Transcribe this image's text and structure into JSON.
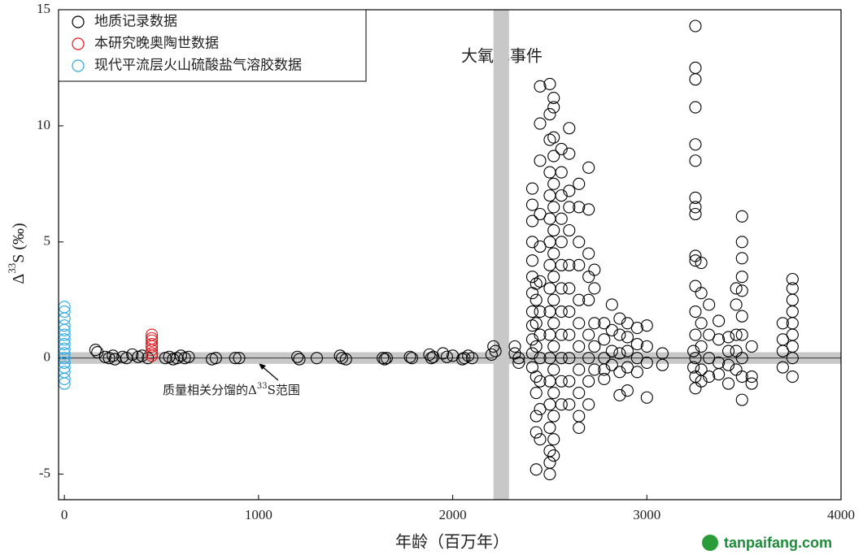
{
  "chart_data": {
    "type": "scatter",
    "xlabel": "年龄（百万年）",
    "ylabel": {
      "prefix": "Δ",
      "sup": "33",
      "suffix": "S (‰)"
    },
    "xlim": [
      -30,
      4000
    ],
    "xticks": [
      0,
      1000,
      2000,
      3000,
      4000
    ],
    "ylim": [
      -6.1,
      15
    ],
    "yticks": [
      -5,
      0,
      5,
      10,
      15
    ],
    "legend": "top-left",
    "grid": false,
    "mdf_band": [
      -0.25,
      0.25
    ],
    "reference_y": 0,
    "goe_band": [
      2210,
      2290
    ],
    "annotations": [
      {
        "text": "大氧化事件"
      },
      {
        "prefix": "质量相关分馏的Δ",
        "sup": "33",
        "suffix": "S范围"
      }
    ],
    "watermark": "tanpaifang.com",
    "series": [
      {
        "name": "地质记录数据",
        "color": "#000000",
        "x": [
          160,
          170,
          210,
          230,
          250,
          260,
          300,
          320,
          350,
          380,
          400,
          430,
          520,
          540,
          560,
          580,
          600,
          620,
          640,
          760,
          780,
          880,
          900,
          1200,
          1210,
          1300,
          1420,
          1430,
          1450,
          1640,
          1650,
          1660,
          1780,
          1790,
          1880,
          1890,
          1900,
          1950,
          1970,
          2000,
          2050,
          2060,
          2080,
          2100,
          2200,
          2210,
          2220,
          2320,
          2320,
          2340,
          2340,
          2410,
          2410,
          2410,
          2410,
          2410,
          2410,
          2410,
          2410,
          2410,
          2410,
          2410,
          2410,
          2430,
          2430,
          2430,
          2430,
          2430,
          2430,
          2430,
          2430,
          2430,
          2450,
          2450,
          2450,
          2450,
          2450,
          2450,
          2450,
          2450,
          2450,
          2450,
          2450,
          2450,
          2500,
          2500,
          2500,
          2500,
          2500,
          2500,
          2500,
          2500,
          2500,
          2500,
          2500,
          2500,
          2500,
          2500,
          2500,
          2500,
          2500,
          2500,
          2520,
          2520,
          2520,
          2520,
          2520,
          2520,
          2520,
          2520,
          2520,
          2520,
          2520,
          2520,
          2520,
          2520,
          2520,
          2520,
          2520,
          2560,
          2560,
          2560,
          2560,
          2560,
          2560,
          2560,
          2560,
          2560,
          2560,
          2560,
          2560,
          2600,
          2600,
          2600,
          2600,
          2600,
          2600,
          2600,
          2600,
          2600,
          2600,
          2600,
          2600,
          2650,
          2650,
          2650,
          2650,
          2650,
          2650,
          2650,
          2650,
          2650,
          2650,
          2650,
          2700,
          2700,
          2700,
          2700,
          2700,
          2700,
          2700,
          2700,
          2700,
          2730,
          2730,
          2730,
          2730,
          2730,
          2780,
          2780,
          2780,
          2780,
          2780,
          2820,
          2820,
          2820,
          2820,
          2860,
          2860,
          2860,
          2860,
          2860,
          2900,
          2900,
          2900,
          2900,
          2900,
          2950,
          2950,
          2950,
          2950,
          3000,
          3000,
          3000,
          3000,
          3080,
          3080,
          3240,
          3240,
          3250,
          3250,
          3250,
          3250,
          3250,
          3250,
          3250,
          3250,
          3250,
          3250,
          3250,
          3250,
          3250,
          3250,
          3250,
          3250,
          3250,
          3280,
          3280,
          3280,
          3280,
          3280,
          3280,
          3320,
          3320,
          3320,
          3320,
          3370,
          3370,
          3370,
          3370,
          3420,
          3420,
          3420,
          3420,
          3460,
          3460,
          3460,
          3460,
          3460,
          3490,
          3490,
          3490,
          3490,
          3490,
          3490,
          3490,
          3490,
          3490,
          3490,
          3540,
          3540,
          3540,
          3700,
          3700,
          3700,
          3700,
          3750,
          3750,
          3750,
          3750,
          3750,
          3750,
          3750,
          3750,
          3750
        ],
        "values": [
          0.35,
          0.25,
          0.05,
          0,
          0.1,
          -0.05,
          0.05,
          0,
          0.15,
          0.05,
          0.1,
          0,
          0,
          0.05,
          -0.05,
          0,
          0.1,
          0,
          0.05,
          -0.05,
          0,
          0,
          0,
          0.05,
          -0.05,
          0,
          0.1,
          0,
          -0.05,
          0,
          -0.05,
          0,
          0.05,
          0,
          0.15,
          0,
          0.05,
          0.2,
          0.05,
          0.1,
          -0.05,
          0,
          0.1,
          0,
          0.15,
          0.5,
          0.3,
          0.2,
          0.5,
          0,
          -0.2,
          7.3,
          6.6,
          5.9,
          5.0,
          4.2,
          3.5,
          2.8,
          2.0,
          1.4,
          0.8,
          0.2,
          -0.4,
          -4.8,
          -3.2,
          -2.5,
          -1.5,
          -0.8,
          0.5,
          1.5,
          2.5,
          3.2,
          11.7,
          10.1,
          8.5,
          6.2,
          4.8,
          3.3,
          2.0,
          1.0,
          0,
          -1.0,
          -2.2,
          -3.5,
          11.8,
          10.5,
          9.4,
          8.0,
          7.0,
          6.0,
          5.0,
          4.0,
          3.0,
          2.0,
          1.0,
          0,
          -1.0,
          -2.0,
          -3.0,
          -4.0,
          -5.0,
          -4.5,
          11.2,
          10.8,
          9.5,
          8.7,
          7.5,
          6.5,
          5.5,
          4.5,
          3.5,
          2.5,
          1.5,
          0.5,
          -0.5,
          -1.5,
          -2.5,
          -3.5,
          -4.2,
          9.0,
          8.0,
          7.0,
          6.0,
          5.0,
          4.0,
          3.0,
          2.0,
          1.0,
          0,
          -1.0,
          -2.0,
          9.9,
          8.8,
          7.2,
          6.5,
          5.5,
          4.0,
          3.0,
          2.0,
          1.0,
          0,
          -1,
          -2,
          7.5,
          6.5,
          5.0,
          4.0,
          2.5,
          1.5,
          0.5,
          -0.5,
          -1.5,
          -2.5,
          -3.0,
          8.2,
          6.4,
          4.5,
          3.5,
          2.5,
          1.0,
          0,
          -1,
          -2,
          3.8,
          3.0,
          1.5,
          0.5,
          -0.5,
          1.5,
          0.8,
          0,
          -0.5,
          -0.9,
          2.3,
          1.2,
          0.3,
          -0.3,
          1.7,
          1.0,
          0.2,
          -0.6,
          -1.6,
          1.5,
          0.9,
          0.3,
          -0.4,
          -1.4,
          1.3,
          0.6,
          0,
          -0.6,
          1.4,
          0.5,
          -0.2,
          -1.7,
          0.2,
          -0.3,
          0.3,
          -0.4,
          14.3,
          12.5,
          12.0,
          10.8,
          9.2,
          8.5,
          6.9,
          6.5,
          6.2,
          4.4,
          4.2,
          3.1,
          2.0,
          1.0,
          0,
          -0.8,
          -1.3,
          4.1,
          2.8,
          1.5,
          0.5,
          -0.5,
          -1.0,
          2.3,
          1.0,
          0,
          -0.8,
          1.6,
          0.8,
          -0.2,
          -0.7,
          0.9,
          0.3,
          -0.3,
          -1.1,
          3.0,
          2.3,
          1.0,
          0.3,
          -0.5,
          6.1,
          5.0,
          4.3,
          3.5,
          2.9,
          1.8,
          1.0,
          0,
          -0.8,
          -1.8,
          0.5,
          -0.8,
          -1.1,
          1.5,
          0.8,
          0.3,
          -0.4,
          3.4,
          3.0,
          2.5,
          2.0,
          1.5,
          1.0,
          0.5,
          0,
          -0.8
        ]
      },
      {
        "name": "本研究晚奥陶世数据",
        "color": "#e8161b",
        "x": [
          450,
          450,
          450,
          450,
          450,
          450,
          450,
          450
        ],
        "values": [
          0.1,
          0.2,
          0.35,
          0.5,
          0.6,
          0.75,
          0.85,
          1.0
        ]
      },
      {
        "name": "现代平流层火山硫酸盐气溶胶数据",
        "color": "#29a9e8",
        "x": [
          0,
          0,
          0,
          0,
          0,
          0,
          0,
          0,
          0,
          0,
          0,
          0,
          0,
          0,
          0,
          0
        ],
        "values": [
          2.2,
          2.0,
          1.7,
          1.4,
          1.2,
          1.0,
          0.8,
          0.6,
          0.4,
          0.2,
          0,
          -0.2,
          -0.4,
          -0.6,
          -0.9,
          -1.1
        ]
      }
    ]
  }
}
